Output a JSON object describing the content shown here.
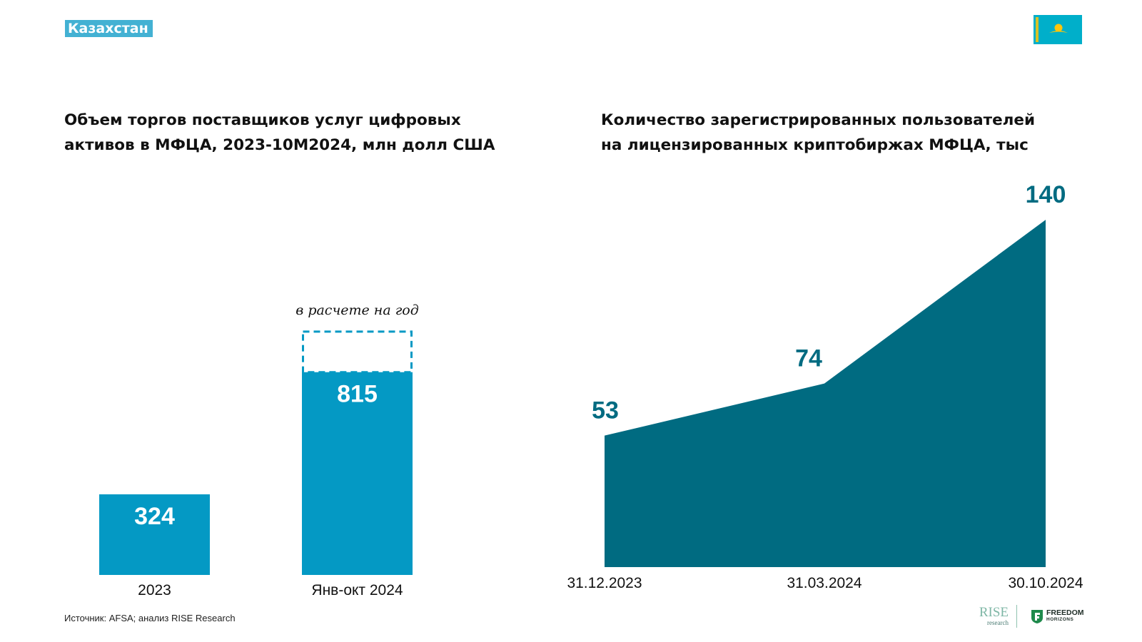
{
  "header": {
    "country_tag": "Казахстан",
    "flag_icon": "kazakhstan-flag-icon",
    "colors": {
      "tag_bg": "#43b1d3",
      "flag_bg": "#00afca",
      "flag_emblem": "#fec50c"
    }
  },
  "chart_data": [
    {
      "type": "bar",
      "title_lines": [
        "Объем торгов поставщиков услуг цифровых",
        "активов в МФЦА, 2023-10М2024, млн долл США"
      ],
      "categories": [
        "2023",
        "Янв-окт 2024"
      ],
      "values": [
        324,
        815
      ],
      "value_labels": [
        "324",
        "815"
      ],
      "projection": {
        "category": "Янв-окт 2024",
        "label": "в расчете на год",
        "value": 978
      },
      "colors": {
        "bar": "#0499c4",
        "projection_border": "#0499c4",
        "value_text": "#ffffff"
      }
    },
    {
      "type": "area",
      "title_lines": [
        "Количество зарегистрированных пользователей",
        "на лицензированных криптобиржах МФЦА, тыс"
      ],
      "x": [
        "31.12.2023",
        "31.03.2024",
        "30.10.2024"
      ],
      "values": [
        53,
        74,
        140
      ],
      "value_labels": [
        "53",
        "74",
        "140"
      ],
      "colors": {
        "area": "#006b81",
        "value_text": "#006b81"
      }
    }
  ],
  "footer": {
    "source": "Источник: AFSA; анализ RISE Research",
    "logos": {
      "rise_main": "RISE",
      "rise_sub": "research",
      "freedom_main": "FREEDOM",
      "freedom_sub": "HORIZONS",
      "freedom_icon": "freedom-shield-icon"
    }
  }
}
